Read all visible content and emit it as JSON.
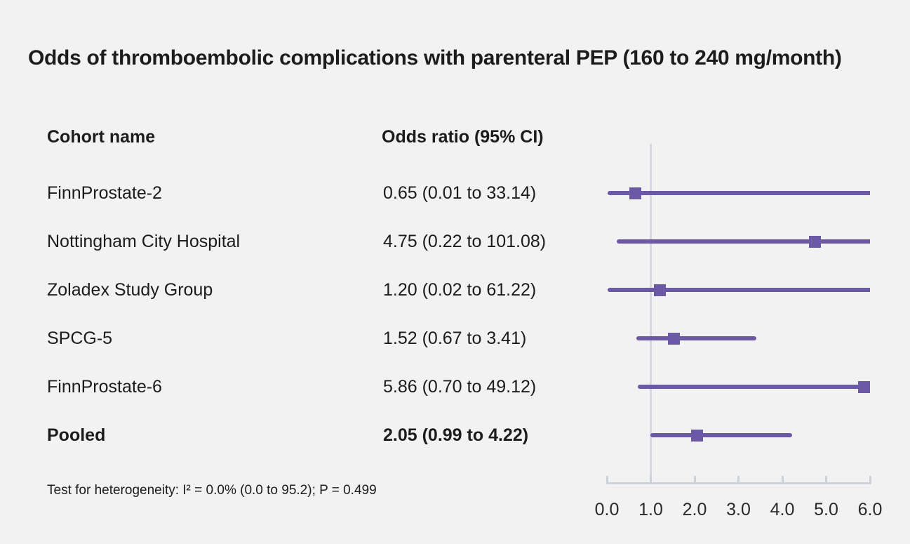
{
  "title": "Odds of thromboembolic complications with parenteral PEP (160 to 240 mg/month)",
  "table": {
    "col_cohort": "Cohort name",
    "col_or": "Odds ratio (95% CI)"
  },
  "footnote": "Test for heterogeneity: I² = 0.0% (0.0 to 95.2); P = 0.499",
  "colors": {
    "background": "#f2f2f2",
    "text": "#1c1c1c",
    "accent_purple": "#6b59a6",
    "reference_line": "#d5d8e0",
    "axis": "#cdd2d9"
  },
  "chart_data": {
    "type": "scatter",
    "variant": "forest-plot",
    "title": "Odds of thromboembolic complications with parenteral PEP (160 to 240 mg/month)",
    "xlabel": "",
    "ylabel": "",
    "xlim": [
      0.0,
      6.0
    ],
    "x_ticks": [
      "0.0",
      "1.0",
      "2.0",
      "3.0",
      "4.0",
      "5.0",
      "6.0"
    ],
    "x_tick_values": [
      0,
      1,
      2,
      3,
      4,
      5,
      6
    ],
    "reference_line_x": 1.0,
    "grid": false,
    "legend": "none",
    "rows": [
      {
        "cohort": "FinnProstate-2",
        "label": "0.65 (0.01 to 33.14)",
        "or": 0.65,
        "ci_low": 0.01,
        "ci_high": 33.14,
        "pooled": false
      },
      {
        "cohort": "Nottingham City Hospital",
        "label": "4.75 (0.22 to 101.08)",
        "or": 4.75,
        "ci_low": 0.22,
        "ci_high": 101.08,
        "pooled": false
      },
      {
        "cohort": "Zoladex Study Group",
        "label": "1.20 (0.02 to 61.22)",
        "or": 1.2,
        "ci_low": 0.02,
        "ci_high": 61.22,
        "pooled": false
      },
      {
        "cohort": "SPCG-5",
        "label": "1.52 (0.67 to 3.41)",
        "or": 1.52,
        "ci_low": 0.67,
        "ci_high": 3.41,
        "pooled": false
      },
      {
        "cohort": "FinnProstate-6",
        "label": "5.86 (0.70 to 49.12)",
        "or": 5.86,
        "ci_low": 0.7,
        "ci_high": 49.12,
        "pooled": false
      },
      {
        "cohort": "Pooled",
        "label": "2.05 (0.99 to 4.22)",
        "or": 2.05,
        "ci_low": 0.99,
        "ci_high": 4.22,
        "pooled": true
      }
    ],
    "heterogeneity_note": "Test for heterogeneity: I² = 0.0% (0.0 to 95.2); P = 0.499"
  }
}
